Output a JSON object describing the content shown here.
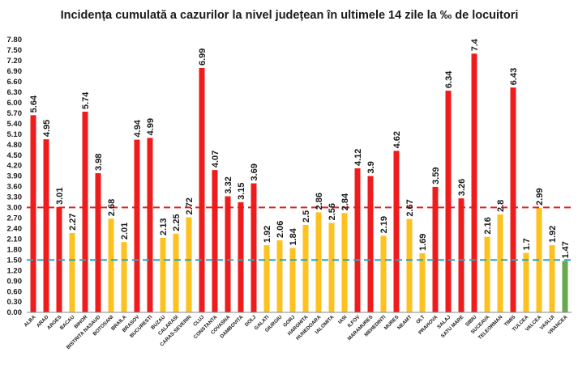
{
  "chart_data": {
    "type": "bar",
    "title": "Incidența cumulată a cazurilor la nivel județean în ultimele 14 zile la ‰ de locuitori",
    "xlabel": "",
    "ylabel": "",
    "ylim": [
      0,
      7.8
    ],
    "ytick_step": 0.3,
    "grid": false,
    "legend": "none",
    "categories": [
      "ALBA",
      "ARAD",
      "ARGES",
      "BACAU",
      "BIHOR",
      "BISTRITA NASAUD",
      "BOTOSANI",
      "BRAILA",
      "BRASOV",
      "BUCURESTI",
      "BUZAU",
      "CALARASI",
      "CARAS-SEVERIN",
      "CLUJ",
      "CONSTANTA",
      "COVASNA",
      "DAMBOVITA",
      "DOLJ",
      "GALATI",
      "GIURGIU",
      "GORJ",
      "HARGHITA",
      "HUNEDOARA",
      "IALOMITA",
      "IASI",
      "ILFOV",
      "MARAMURES",
      "MEHEDINTI",
      "MURES",
      "NEAMT",
      "OLT",
      "PRAHOVA",
      "SALAJ",
      "SATU MARE",
      "SIBIU",
      "SUCEAVA",
      "TELEORMAN",
      "TIMIS",
      "TULCEA",
      "VALCEA",
      "VASLUI",
      "VRANCEA"
    ],
    "values": [
      5.64,
      4.95,
      3.01,
      2.27,
      5.74,
      3.98,
      2.68,
      2.01,
      4.94,
      4.99,
      2.13,
      2.25,
      2.72,
      6.99,
      4.07,
      3.32,
      3.15,
      3.69,
      1.92,
      2.06,
      1.84,
      2.5,
      2.86,
      2.56,
      2.84,
      4.12,
      3.9,
      2.19,
      4.62,
      2.67,
      1.69,
      3.59,
      6.34,
      3.26,
      7.4,
      2.16,
      2.8,
      6.43,
      1.7,
      2.99,
      1.92,
      1.47
    ],
    "labels": [
      "5.64",
      "4.95",
      "3.01",
      "2.27",
      "5.74",
      "3.98",
      "2.68",
      "2.01",
      "4.94",
      "4.99",
      "2.13",
      "2.25",
      "2.72",
      "6.99",
      "4.07",
      "3.32",
      "3.15",
      "3.69",
      "1.92",
      "2.06",
      "1.84",
      "2.5",
      "2.86",
      "2.56",
      "2.84",
      "4.12",
      "3.9",
      "2.19",
      "4.62",
      "2.67",
      "1.69",
      "3.59",
      "6.34",
      "3.26",
      "7.4",
      "2.16",
      "2.8",
      "6.43",
      "1.7",
      "2.99",
      "1.92",
      "1.47"
    ],
    "thresholds": [
      {
        "value": 3.0,
        "color": "#e31d1d",
        "style": "dashed"
      },
      {
        "value": 1.5,
        "color": "#21a8c8",
        "style": "dashed"
      }
    ],
    "colors": {
      "high": "#ee1c1c",
      "medium": "#fdc21f",
      "low": "#6aa84f",
      "axis": "#8a8a8a"
    }
  }
}
